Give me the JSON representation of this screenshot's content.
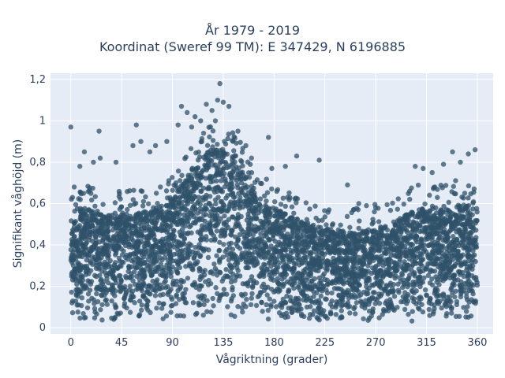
{
  "chart_data": {
    "type": "scatter",
    "title": "År 1979 - 2019",
    "subtitle": "Koordinat (Sweref 99 TM): E 347429, N 6196885",
    "xlabel": "Vågriktning (grader)",
    "ylabel": "Signifikant våghöjd (m)",
    "xlim": [
      -18,
      374
    ],
    "ylim": [
      -0.03,
      1.23
    ],
    "xticks": [
      0,
      45,
      90,
      135,
      180,
      225,
      270,
      315,
      360
    ],
    "xtick_labels": [
      "0",
      "45",
      "90",
      "135",
      "180",
      "225",
      "270",
      "315",
      "360"
    ],
    "yticks": [
      0,
      0.2,
      0.4,
      0.6,
      0.8,
      1.0,
      1.2
    ],
    "ytick_labels": [
      "0",
      "0,2",
      "0,4",
      "0,6",
      "0,8",
      "1",
      "1,2"
    ],
    "grid": true,
    "marker_color": "#2f5169",
    "plot_bgcolor": "#e5ecf6",
    "series": [
      {
        "values_summary": "dense band of points from ~0.03 m up to an upper envelope; densest below 0.5 m",
        "upper_envelope": {
          "x": [
            0,
            10,
            30,
            50,
            70,
            90,
            105,
            120,
            135,
            150,
            165,
            180,
            200,
            225,
            250,
            270,
            290,
            300,
            315,
            330,
            345,
            360
          ],
          "y": [
            0.5,
            0.58,
            0.55,
            0.55,
            0.56,
            0.62,
            0.75,
            0.85,
            0.88,
            0.78,
            0.62,
            0.58,
            0.52,
            0.48,
            0.46,
            0.48,
            0.52,
            0.56,
            0.58,
            0.57,
            0.6,
            0.58
          ]
        },
        "outliers": {
          "x": [
            0,
            3,
            8,
            12,
            20,
            25,
            26,
            40,
            55,
            58,
            62,
            70,
            75,
            85,
            95,
            98,
            103,
            107,
            110,
            115,
            120,
            125,
            128,
            130,
            132,
            135,
            140,
            148,
            155,
            160,
            175,
            178,
            190,
            200,
            220,
            245,
            255,
            270,
            300,
            305,
            312,
            320,
            330,
            338,
            345,
            352,
            358
          ],
          "y": [
            0.97,
            0.68,
            0.78,
            0.85,
            0.8,
            0.95,
            0.82,
            0.8,
            0.88,
            0.98,
            0.9,
            0.85,
            0.88,
            0.9,
            0.98,
            1.07,
            1.04,
            0.97,
            1.02,
            1.0,
            1.08,
            1.05,
            1.0,
            1.1,
            1.18,
            1.09,
            1.07,
            0.95,
            0.88,
            0.82,
            0.92,
            0.77,
            0.78,
            0.83,
            0.81,
            0.69,
            0.6,
            0.58,
            0.66,
            0.78,
            0.77,
            0.75,
            0.79,
            0.85,
            0.8,
            0.84,
            0.86
          ]
        }
      }
    ]
  }
}
